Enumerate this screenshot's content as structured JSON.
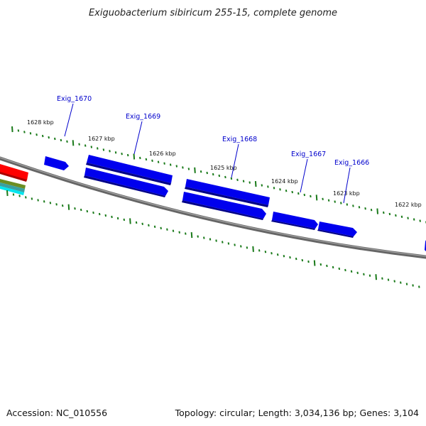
{
  "title": "Exiguobacterium sibiricum 255-15, complete genome",
  "footer": {
    "accession": "Accession: NC_010556",
    "summary": "Topology: circular; Length: 3,034,136 bp; Genes: 3,104"
  },
  "kbp_labels": [
    "1628 kbp",
    "1627 kbp",
    "1626 kbp",
    "1625 kbp",
    "1624 kbp",
    "1623 kbp",
    "1622 kbp"
  ],
  "genes": [
    {
      "name": "Exig_1670",
      "strand": "forward"
    },
    {
      "name": "Exig_1669",
      "strand": "forward"
    },
    {
      "name": "Exig_1668",
      "strand": "forward"
    },
    {
      "name": "Exig_1667",
      "strand": "forward"
    },
    {
      "name": "Exig_1666",
      "strand": "forward"
    }
  ],
  "colors": {
    "gene": "#0000ee",
    "gene_label": "#0000cc",
    "tick": "#1a7a1a",
    "backbone": "#888888"
  }
}
